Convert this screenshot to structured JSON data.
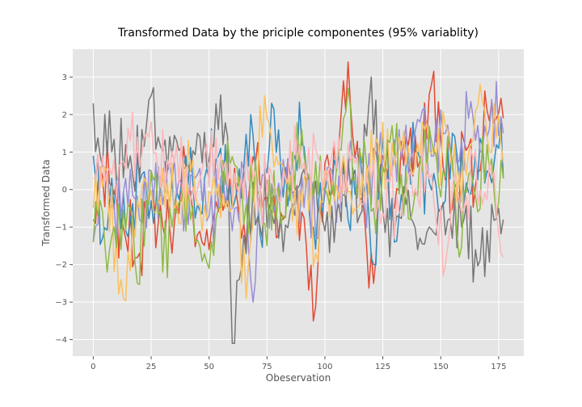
{
  "chart_data": {
    "type": "line",
    "title": "Transformed Data by the priciple componentes (95% variablity)",
    "xlabel": "Obeservation",
    "ylabel": "Transformed Data",
    "xlim": [
      -8.85,
      185.85
    ],
    "ylim": [
      -4.44,
      3.74
    ],
    "xticks": [
      0,
      25,
      50,
      75,
      100,
      125,
      150,
      175
    ],
    "yticks": [
      -4,
      -3,
      -2,
      -1,
      0,
      1,
      2,
      3
    ],
    "grid": true,
    "legend": false,
    "n_points": 178,
    "series": [
      {
        "color": "#E24A33",
        "anchors": [
          [
            0,
            -0.8
          ],
          [
            3,
            0.6
          ],
          [
            8,
            0.1
          ],
          [
            14,
            -1.3
          ],
          [
            20,
            -1.7
          ],
          [
            25,
            -0.4
          ],
          [
            30,
            -1.0
          ],
          [
            35,
            -0.9
          ],
          [
            40,
            0.6
          ],
          [
            45,
            -1.2
          ],
          [
            50,
            -1.6
          ],
          [
            55,
            0.1
          ],
          [
            60,
            -0.2
          ],
          [
            65,
            -0.9
          ],
          [
            70,
            0.7
          ],
          [
            75,
            -0.2
          ],
          [
            80,
            -1.2
          ],
          [
            85,
            0.4
          ],
          [
            90,
            -0.6
          ],
          [
            95,
            -3.5
          ],
          [
            100,
            0.7
          ],
          [
            105,
            0.5
          ],
          [
            110,
            3.4
          ],
          [
            115,
            -0.3
          ],
          [
            121,
            -2.5
          ],
          [
            125,
            0.9
          ],
          [
            130,
            -0.5
          ],
          [
            135,
            1.4
          ],
          [
            140,
            0.6
          ],
          [
            146,
            2.8
          ],
          [
            150,
            1.4
          ],
          [
            155,
            -0.5
          ],
          [
            160,
            1.3
          ],
          [
            165,
            0.1
          ],
          [
            170,
            2.1
          ],
          [
            174,
            1.9
          ],
          [
            177,
            1.9
          ]
        ]
      },
      {
        "color": "#348ABD",
        "anchors": [
          [
            0,
            0.9
          ],
          [
            4,
            -1.3
          ],
          [
            8,
            0.3
          ],
          [
            14,
            -1.1
          ],
          [
            20,
            0.2
          ],
          [
            25,
            -0.3
          ],
          [
            30,
            0.4
          ],
          [
            35,
            -0.6
          ],
          [
            40,
            0.9
          ],
          [
            45,
            -0.4
          ],
          [
            50,
            0.3
          ],
          [
            55,
            1.1
          ],
          [
            60,
            -0.5
          ],
          [
            65,
            0.6
          ],
          [
            68,
            2.0
          ],
          [
            72,
            -1.2
          ],
          [
            77,
            2.3
          ],
          [
            82,
            -0.2
          ],
          [
            87,
            0.9
          ],
          [
            90,
            1.2
          ],
          [
            95,
            -1.0
          ],
          [
            100,
            -0.1
          ],
          [
            105,
            0.6
          ],
          [
            110,
            -0.8
          ],
          [
            115,
            1.1
          ],
          [
            121,
            -2.0
          ],
          [
            125,
            1.4
          ],
          [
            130,
            -1.4
          ],
          [
            135,
            0.6
          ],
          [
            140,
            1.0
          ],
          [
            145,
            0.2
          ],
          [
            150,
            -0.5
          ],
          [
            155,
            1.5
          ],
          [
            160,
            -0.4
          ],
          [
            165,
            0.9
          ],
          [
            170,
            0.5
          ],
          [
            175,
            1.1
          ],
          [
            177,
            0.3
          ]
        ]
      },
      {
        "color": "#988ED5",
        "anchors": [
          [
            0,
            -1.4
          ],
          [
            4,
            0.2
          ],
          [
            9,
            -0.4
          ],
          [
            14,
            0.3
          ],
          [
            20,
            -0.8
          ],
          [
            25,
            0.5
          ],
          [
            30,
            -0.4
          ],
          [
            35,
            0.8
          ],
          [
            40,
            -0.3
          ],
          [
            45,
            0.4
          ],
          [
            50,
            -0.7
          ],
          [
            55,
            0.3
          ],
          [
            60,
            -1.1
          ],
          [
            65,
            0.5
          ],
          [
            69,
            -3.0
          ],
          [
            73,
            0.4
          ],
          [
            78,
            -0.6
          ],
          [
            82,
            0.8
          ],
          [
            87,
            -0.4
          ],
          [
            92,
            0.3
          ],
          [
            97,
            -1.3
          ],
          [
            102,
            0.6
          ],
          [
            107,
            -0.5
          ],
          [
            112,
            0.9
          ],
          [
            117,
            -0.2
          ],
          [
            122,
            1.0
          ],
          [
            127,
            0.2
          ],
          [
            132,
            1.6
          ],
          [
            137,
            0.8
          ],
          [
            142,
            2.1
          ],
          [
            147,
            0.9
          ],
          [
            152,
            1.5
          ],
          [
            157,
            0.7
          ],
          [
            162,
            1.9
          ],
          [
            167,
            1.0
          ],
          [
            172,
            2.4
          ],
          [
            177,
            1.5
          ]
        ]
      },
      {
        "color": "#777777",
        "anchors": [
          [
            0,
            2.3
          ],
          [
            3,
            0.9
          ],
          [
            7,
            2.1
          ],
          [
            10,
            0.3
          ],
          [
            14,
            1.2
          ],
          [
            17,
            0.4
          ],
          [
            21,
            1.6
          ],
          [
            25,
            2.5
          ],
          [
            28,
            1.4
          ],
          [
            32,
            0.5
          ],
          [
            36,
            1.3
          ],
          [
            40,
            0.6
          ],
          [
            45,
            1.5
          ],
          [
            50,
            0.8
          ],
          [
            54,
            1.6
          ],
          [
            58,
            1.4
          ],
          [
            60,
            -4.1
          ],
          [
            63,
            -2.4
          ],
          [
            67,
            -0.2
          ],
          [
            72,
            -1.0
          ],
          [
            76,
            -0.4
          ],
          [
            80,
            -1.3
          ],
          [
            85,
            -0.6
          ],
          [
            90,
            0.4
          ],
          [
            95,
            -0.2
          ],
          [
            100,
            -1.1
          ],
          [
            105,
            -0.6
          ],
          [
            110,
            0.8
          ],
          [
            115,
            -0.7
          ],
          [
            120,
            3.0
          ],
          [
            125,
            -0.5
          ],
          [
            130,
            -1.1
          ],
          [
            135,
            -0.4
          ],
          [
            140,
            -1.6
          ],
          [
            145,
            -1.0
          ],
          [
            150,
            -0.6
          ],
          [
            155,
            -1.3
          ],
          [
            160,
            -0.8
          ],
          [
            165,
            -1.6
          ],
          [
            170,
            -1.1
          ],
          [
            175,
            -0.5
          ],
          [
            177,
            -0.8
          ]
        ]
      },
      {
        "color": "#FBC15E",
        "anchors": [
          [
            0,
            -0.5
          ],
          [
            5,
            0.6
          ],
          [
            10,
            -1.4
          ],
          [
            13,
            -2.9
          ],
          [
            17,
            -0.8
          ],
          [
            22,
            0.3
          ],
          [
            27,
            -0.6
          ],
          [
            32,
            0.2
          ],
          [
            37,
            -0.9
          ],
          [
            42,
            0.5
          ],
          [
            47,
            -1.1
          ],
          [
            52,
            0.4
          ],
          [
            57,
            -0.5
          ],
          [
            62,
            0.3
          ],
          [
            66,
            -2.9
          ],
          [
            70,
            0.5
          ],
          [
            74,
            2.5
          ],
          [
            78,
            0.6
          ],
          [
            83,
            0.3
          ],
          [
            88,
            -1.2
          ],
          [
            92,
            0.5
          ],
          [
            96,
            -1.7
          ],
          [
            100,
            0.4
          ],
          [
            104,
            -0.3
          ],
          [
            108,
            0.9
          ],
          [
            113,
            -0.5
          ],
          [
            118,
            0.6
          ],
          [
            123,
            1.2
          ],
          [
            128,
            0.3
          ],
          [
            133,
            1.0
          ],
          [
            138,
            0.4
          ],
          [
            143,
            1.6
          ],
          [
            148,
            0.8
          ],
          [
            152,
            1.7
          ],
          [
            158,
            0.5
          ],
          [
            163,
            1.2
          ],
          [
            167,
            2.8
          ],
          [
            171,
            1.0
          ],
          [
            175,
            2.0
          ],
          [
            177,
            0.7
          ]
        ]
      },
      {
        "color": "#8EBA42",
        "anchors": [
          [
            0,
            -1.4
          ],
          [
            3,
            -0.3
          ],
          [
            6,
            -2.2
          ],
          [
            9,
            -1.0
          ],
          [
            12,
            -1.6
          ],
          [
            16,
            -0.5
          ],
          [
            19,
            -2.5
          ],
          [
            23,
            -0.3
          ],
          [
            27,
            0.4
          ],
          [
            30,
            -2.2
          ],
          [
            34,
            -1.0
          ],
          [
            38,
            -0.3
          ],
          [
            42,
            -0.8
          ],
          [
            46,
            -1.5
          ],
          [
            50,
            -2.1
          ],
          [
            54,
            -0.5
          ],
          [
            58,
            1.3
          ],
          [
            62,
            0.6
          ],
          [
            66,
            -0.4
          ],
          [
            70,
            0.8
          ],
          [
            74,
            -0.9
          ],
          [
            78,
            0.5
          ],
          [
            82,
            -0.7
          ],
          [
            86,
            1.0
          ],
          [
            90,
            1.6
          ],
          [
            94,
            0.2
          ],
          [
            98,
            0.9
          ],
          [
            102,
            -0.4
          ],
          [
            106,
            1.1
          ],
          [
            110,
            2.7
          ],
          [
            113,
            0.3
          ],
          [
            117,
            1.3
          ],
          [
            121,
            -0.5
          ],
          [
            125,
            0.6
          ],
          [
            129,
            1.7
          ],
          [
            133,
            0.4
          ],
          [
            137,
            -0.8
          ],
          [
            142,
            0.5
          ],
          [
            146,
            1.3
          ],
          [
            150,
            -0.2
          ],
          [
            154,
            1.1
          ],
          [
            158,
            -1.8
          ],
          [
            162,
            0.4
          ],
          [
            166,
            -0.6
          ],
          [
            170,
            1.2
          ],
          [
            174,
            -0.7
          ],
          [
            177,
            0.3
          ]
        ]
      },
      {
        "color": "#FFB5B8",
        "anchors": [
          [
            0,
            0.3
          ],
          [
            4,
            0.9
          ],
          [
            8,
            0.4
          ],
          [
            12,
            0.7
          ],
          [
            16,
            1.3
          ],
          [
            20,
            0.6
          ],
          [
            24,
            1.4
          ],
          [
            28,
            0.5
          ],
          [
            32,
            0.8
          ],
          [
            36,
            1.2
          ],
          [
            40,
            0.6
          ],
          [
            44,
            -0.3
          ],
          [
            48,
            0.9
          ],
          [
            52,
            0.3
          ],
          [
            56,
            0.5
          ],
          [
            60,
            -0.2
          ],
          [
            64,
            0.4
          ],
          [
            68,
            0.9
          ],
          [
            72,
            0.1
          ],
          [
            76,
            0.6
          ],
          [
            80,
            -0.3
          ],
          [
            84,
            0.2
          ],
          [
            88,
            0.8
          ],
          [
            92,
            0.3
          ],
          [
            96,
            1.1
          ],
          [
            100,
            0.5
          ],
          [
            104,
            1.3
          ],
          [
            108,
            0.4
          ],
          [
            112,
            0.9
          ],
          [
            116,
            -0.4
          ],
          [
            120,
            0.3
          ],
          [
            124,
            -0.9
          ],
          [
            128,
            0.2
          ],
          [
            132,
            -0.6
          ],
          [
            136,
            0.4
          ],
          [
            140,
            -0.2
          ],
          [
            144,
            0.7
          ],
          [
            148,
            -0.8
          ],
          [
            152,
            -2.0
          ],
          [
            156,
            0.4
          ],
          [
            160,
            -0.5
          ],
          [
            164,
            0.8
          ],
          [
            168,
            -0.4
          ],
          [
            172,
            0.3
          ],
          [
            176,
            -1.7
          ],
          [
            177,
            -1.8
          ]
        ]
      }
    ]
  }
}
